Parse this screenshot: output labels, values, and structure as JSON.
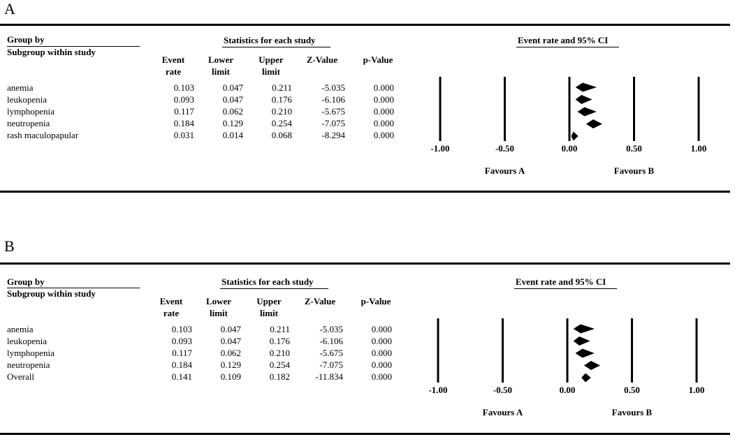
{
  "chart_data": [
    {
      "type": "forest",
      "panel_label": "A",
      "headers": {
        "group_by": "Group by",
        "subgroup": "Subgroup within study",
        "statistics": "Statistics for each study",
        "plot_title": "Event rate and 95% CI"
      },
      "columns": [
        {
          "line1": "Event",
          "line2": "rate"
        },
        {
          "line1": "Lower",
          "line2": "limit"
        },
        {
          "line1": "Upper",
          "line2": "limit"
        },
        {
          "line1": "",
          "line2": "Z-Value"
        },
        {
          "line1": "",
          "line2": "p-Value"
        }
      ],
      "rows": [
        {
          "name": "anemia",
          "rate": "0.103",
          "lower": "0.047",
          "upper": "0.211",
          "z": "-5.035",
          "p": "0.000",
          "r": 0.103,
          "lo": 0.047,
          "hi": 0.211
        },
        {
          "name": "leukopenia",
          "rate": "0.093",
          "lower": "0.047",
          "upper": "0.176",
          "z": "-6.106",
          "p": "0.000",
          "r": 0.093,
          "lo": 0.047,
          "hi": 0.176
        },
        {
          "name": "lymphopenia",
          "rate": "0.117",
          "lower": "0.062",
          "upper": "0.210",
          "z": "-5.675",
          "p": "0.000",
          "r": 0.117,
          "lo": 0.062,
          "hi": 0.21
        },
        {
          "name": "neutropenia",
          "rate": "0.184",
          "lower": "0.129",
          "upper": "0.254",
          "z": "-7.075",
          "p": "0.000",
          "r": 0.184,
          "lo": 0.129,
          "hi": 0.254
        },
        {
          "name": "rash maculopapular",
          "rate": "0.031",
          "lower": "0.014",
          "upper": "0.068",
          "z": "-8.294",
          "p": "0.000",
          "r": 0.031,
          "lo": 0.014,
          "hi": 0.068
        }
      ],
      "x_ticks": [
        -1.0,
        -0.5,
        0.0,
        0.5,
        1.0
      ],
      "x_tick_labels": [
        "-1.00",
        "-0.50",
        "0.00",
        "0.50",
        "1.00"
      ],
      "xlim": [
        -1.0,
        1.0
      ],
      "favours_left": "Favours A",
      "favours_right": "Favours B"
    },
    {
      "type": "forest",
      "panel_label": "B",
      "headers": {
        "group_by": "Group by",
        "subgroup": "Subgroup within study",
        "statistics": "Statistics for each study",
        "plot_title": "Event rate and 95% CI"
      },
      "columns": [
        {
          "line1": "Event",
          "line2": "rate"
        },
        {
          "line1": "Lower",
          "line2": "limit"
        },
        {
          "line1": "Upper",
          "line2": "limit"
        },
        {
          "line1": "",
          "line2": "Z-Value"
        },
        {
          "line1": "",
          "line2": "p-Value"
        }
      ],
      "rows": [
        {
          "name": "anemia",
          "rate": "0.103",
          "lower": "0.047",
          "upper": "0.211",
          "z": "-5.035",
          "p": "0.000",
          "r": 0.103,
          "lo": 0.047,
          "hi": 0.211
        },
        {
          "name": "leukopenia",
          "rate": "0.093",
          "lower": "0.047",
          "upper": "0.176",
          "z": "-6.106",
          "p": "0.000",
          "r": 0.093,
          "lo": 0.047,
          "hi": 0.176
        },
        {
          "name": "lymphopenia",
          "rate": "0.117",
          "lower": "0.062",
          "upper": "0.210",
          "z": "-5.675",
          "p": "0.000",
          "r": 0.117,
          "lo": 0.062,
          "hi": 0.21
        },
        {
          "name": "neutropenia",
          "rate": "0.184",
          "lower": "0.129",
          "upper": "0.254",
          "z": "-7.075",
          "p": "0.000",
          "r": 0.184,
          "lo": 0.129,
          "hi": 0.254
        },
        {
          "name": "Overall",
          "rate": "0.141",
          "lower": "0.109",
          "upper": "0.182",
          "z": "-11.834",
          "p": "0.000",
          "r": 0.141,
          "lo": 0.109,
          "hi": 0.182
        }
      ],
      "x_ticks": [
        -1.0,
        -0.5,
        0.0,
        0.5,
        1.0
      ],
      "x_tick_labels": [
        "-1.00",
        "-0.50",
        "0.00",
        "0.50",
        "1.00"
      ],
      "xlim": [
        -1.0,
        1.0
      ],
      "favours_left": "Favours A",
      "favours_right": "Favours B"
    }
  ]
}
